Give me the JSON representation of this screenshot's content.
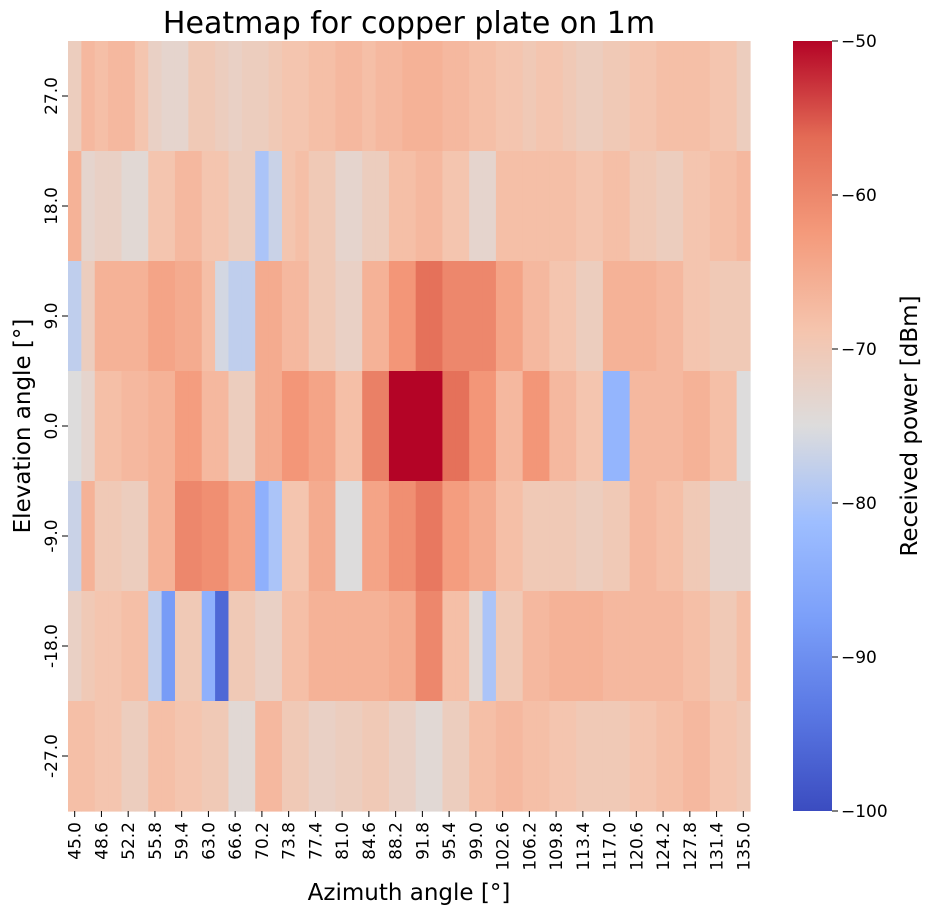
{
  "chart_data": {
    "type": "heatmap",
    "title": "Heatmap for copper plate on 1m",
    "xlabel": "Azimuth angle [°]",
    "ylabel": "Elevation angle [°]",
    "colorbar_label": "Received power [dBm]",
    "colormap": "coolwarm",
    "vmin": -100,
    "vmax": -50,
    "colorbar_ticks": [
      "−50",
      "−60",
      "−70",
      "−80",
      "−90",
      "−100"
    ],
    "colorbar_tick_values": [
      -50,
      -60,
      -70,
      -80,
      -90,
      -100
    ],
    "x_tick_labels": [
      "45.0",
      "48.6",
      "52.2",
      "55.8",
      "59.4",
      "63.0",
      "66.6",
      "70.2",
      "73.8",
      "77.4",
      "81.0",
      "84.6",
      "88.2",
      "91.8",
      "95.4",
      "99.0",
      "102.6",
      "106.2",
      "109.8",
      "113.4",
      "117.0",
      "120.6",
      "124.2",
      "127.8",
      "131.4",
      "135.0"
    ],
    "x": [
      45.0,
      46.8,
      48.6,
      50.4,
      52.2,
      54.0,
      55.8,
      57.6,
      59.4,
      61.2,
      63.0,
      64.8,
      66.6,
      68.4,
      70.2,
      72.0,
      73.8,
      75.6,
      77.4,
      79.2,
      81.0,
      82.8,
      84.6,
      86.4,
      88.2,
      90.0,
      91.8,
      93.6,
      95.4,
      97.2,
      99.0,
      100.8,
      102.6,
      104.4,
      106.2,
      108.0,
      109.8,
      111.6,
      113.4,
      115.2,
      117.0,
      118.8,
      120.6,
      122.4,
      124.2,
      126.0,
      127.8,
      129.6,
      131.4,
      133.2,
      135.0
    ],
    "y": [
      27.0,
      18.0,
      9.0,
      0.0,
      -9.0,
      -18.0,
      -27.0
    ],
    "y_tick_labels": [
      "27.0",
      "18.0",
      "9.0",
      "0.0",
      "-9.0",
      "-18.0",
      "-27.0"
    ],
    "values": [
      [
        -71,
        -67,
        -68,
        -67,
        -67,
        -69,
        -72,
        -73,
        -73,
        -70,
        -70,
        -71,
        -72,
        -71,
        -71,
        -70,
        -69,
        -69,
        -68,
        -68,
        -67,
        -67,
        -68,
        -67,
        -67,
        -66,
        -66,
        -66,
        -67,
        -67,
        -68,
        -68,
        -69,
        -69,
        -70,
        -69,
        -69,
        -70,
        -71,
        -71,
        -70,
        -70,
        -69,
        -69,
        -68,
        -68,
        -68,
        -68,
        -69,
        -69,
        -71
      ],
      [
        -66,
        -73,
        -72,
        -72,
        -74,
        -74,
        -69,
        -69,
        -67,
        -67,
        -69,
        -69,
        -71,
        -71,
        -80,
        -77,
        -69,
        -68,
        -70,
        -70,
        -73,
        -73,
        -71,
        -71,
        -68,
        -68,
        -67,
        -67,
        -69,
        -69,
        -73,
        -73,
        -68,
        -68,
        -68,
        -68,
        -68,
        -68,
        -69,
        -69,
        -68,
        -68,
        -70,
        -70,
        -71,
        -71,
        -69,
        -69,
        -68,
        -68,
        -67
      ],
      [
        -78,
        -71,
        -66,
        -66,
        -66,
        -66,
        -64,
        -64,
        -65,
        -65,
        -68,
        -76,
        -78,
        -78,
        -65,
        -65,
        -67,
        -67,
        -70,
        -70,
        -72,
        -72,
        -66,
        -66,
        -62,
        -62,
        -57,
        -57,
        -60,
        -60,
        -60,
        -60,
        -64,
        -64,
        -67,
        -67,
        -69,
        -69,
        -71,
        -71,
        -66,
        -66,
        -66,
        -66,
        -67,
        -67,
        -69,
        -69,
        -70,
        -70,
        -70
      ],
      [
        -75,
        -73,
        -68,
        -68,
        -67,
        -67,
        -66,
        -66,
        -63,
        -63,
        -67,
        -67,
        -71,
        -71,
        -65,
        -65,
        -62,
        -62,
        -64,
        -64,
        -68,
        -68,
        -59,
        -59,
        -50,
        -50,
        -50,
        -50,
        -57,
        -57,
        -62,
        -62,
        -67,
        -67,
        -62,
        -62,
        -67,
        -67,
        -69,
        -69,
        -83,
        -83,
        -67,
        -67,
        -67,
        -67,
        -66,
        -66,
        -68,
        -68,
        -75
      ],
      [
        -77,
        -66,
        -70,
        -70,
        -71,
        -71,
        -66,
        -66,
        -60,
        -60,
        -61,
        -61,
        -64,
        -64,
        -84,
        -80,
        -69,
        -69,
        -65,
        -65,
        -75,
        -75,
        -64,
        -64,
        -61,
        -61,
        -58,
        -58,
        -63,
        -63,
        -65,
        -65,
        -68,
        -68,
        -70,
        -70,
        -70,
        -70,
        -71,
        -71,
        -70,
        -70,
        -67,
        -67,
        -68,
        -68,
        -70,
        -70,
        -73,
        -73,
        -73
      ],
      [
        -72,
        -70,
        -69,
        -69,
        -68,
        -68,
        -78,
        -88,
        -70,
        -70,
        -84,
        -96,
        -70,
        -70,
        -72,
        -72,
        -68,
        -68,
        -66,
        -66,
        -66,
        -66,
        -66,
        -66,
        -65,
        -65,
        -60,
        -60,
        -68,
        -68,
        -74,
        -80,
        -70,
        -70,
        -67,
        -67,
        -66,
        -66,
        -66,
        -66,
        -67,
        -67,
        -67,
        -67,
        -67,
        -67,
        -68,
        -68,
        -70,
        -70,
        -68
      ],
      [
        -68,
        -68,
        -69,
        -69,
        -71,
        -71,
        -68,
        -68,
        -69,
        -69,
        -70,
        -70,
        -74,
        -74,
        -67,
        -67,
        -70,
        -70,
        -72,
        -72,
        -71,
        -71,
        -70,
        -70,
        -72,
        -72,
        -74,
        -74,
        -71,
        -71,
        -68,
        -68,
        -67,
        -67,
        -68,
        -68,
        -69,
        -69,
        -70,
        -70,
        -70,
        -70,
        -69,
        -69,
        -68,
        -68,
        -67,
        -67,
        -69,
        -69,
        -70
      ]
    ]
  }
}
